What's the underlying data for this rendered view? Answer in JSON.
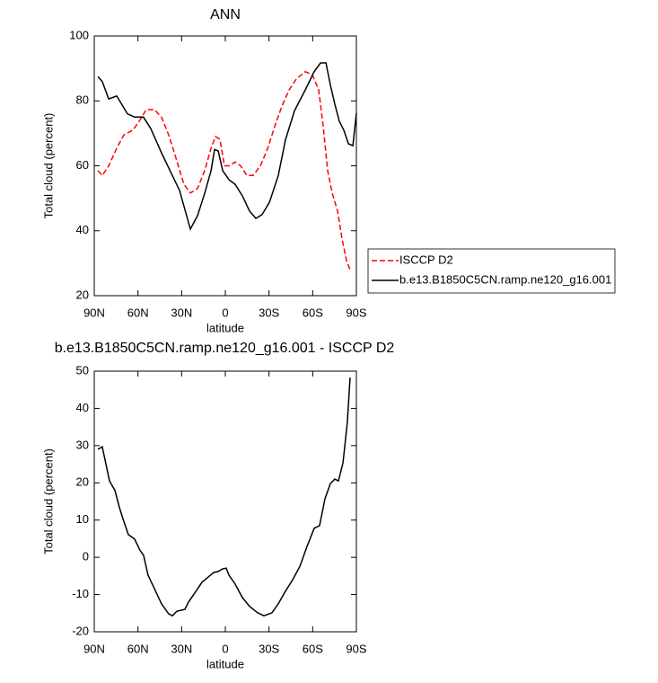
{
  "chart_data": [
    {
      "type": "line",
      "title": "ANN",
      "xlabel": "latitude",
      "ylabel": "Total cloud (percent)",
      "xlim": [
        90,
        -90
      ],
      "xticks": [
        {
          "value": 90,
          "label": "90N"
        },
        {
          "value": 60,
          "label": "60N"
        },
        {
          "value": 30,
          "label": "30N"
        },
        0,
        {
          "value": -30,
          "label": "30S"
        },
        {
          "value": -60,
          "label": "60S"
        },
        {
          "value": -90,
          "label": "90S"
        }
      ],
      "ylim": [
        20,
        100
      ],
      "yticks": [
        20,
        40,
        60,
        80,
        100
      ],
      "legend": "right",
      "series": [
        {
          "name": "ISCCP D2",
          "color": "#ff0000",
          "line_style": "dashed",
          "x": [
            87.5,
            84.5,
            80.1,
            74.6,
            69.7,
            63.5,
            59.2,
            54.3,
            48.7,
            43.8,
            38.9,
            34.0,
            28.4,
            24.0,
            19.1,
            14.2,
            9.8,
            6.8,
            3.7,
            0.6,
            -3.1,
            -6.8,
            -10.5,
            -14.8,
            -19.1,
            -24.1,
            -29.1,
            -34.0,
            -38.9,
            -43.8,
            -48.7,
            -54.9,
            -59.8,
            -64.1,
            -67.2,
            -70.3,
            -73.4,
            -77.1,
            -80.1,
            -83.2,
            -85.7
          ],
          "values": [
            58.5,
            57,
            60,
            65.4,
            69.5,
            71,
            73.7,
            77.3,
            77.3,
            75,
            69.5,
            62.6,
            54.3,
            51.6,
            53,
            58.5,
            65.4,
            69,
            68.2,
            60,
            60,
            61.2,
            60,
            57,
            57,
            60,
            65.4,
            72.3,
            78.4,
            83.4,
            86.7,
            89,
            88,
            83.4,
            72.3,
            58.5,
            51.6,
            46,
            37.7,
            30.8,
            28
          ]
        },
        {
          "name": "b.e13.B1850C5CN.ramp.ne120_g16.001",
          "color": "#000000",
          "line_style": "solid",
          "x": [
            87.5,
            84.5,
            80.1,
            74.6,
            67.2,
            62.3,
            56.2,
            51.2,
            43.8,
            36.4,
            31.5,
            24.0,
            19.1,
            14.2,
            9.8,
            7.4,
            4.9,
            1.8,
            -2.5,
            -6.8,
            -11.8,
            -16.7,
            -21.0,
            -25.3,
            -30.3,
            -36.4,
            -41.3,
            -47.5,
            -54.9,
            -61.0,
            -65.4,
            -69.1,
            -72.2,
            -75.2,
            -78.3,
            -81.4,
            -84.5,
            -87.6,
            -90
          ],
          "values": [
            87.5,
            86,
            80.6,
            81.5,
            76,
            75,
            75,
            71.5,
            64,
            57,
            52.5,
            40.5,
            44.6,
            51.5,
            58.5,
            65,
            64.6,
            58.5,
            55.7,
            54.3,
            50.7,
            46,
            43.8,
            45,
            48.8,
            57,
            68,
            77,
            83.4,
            89,
            91.7,
            91.7,
            84.8,
            79,
            73.7,
            71,
            66.8,
            66.2,
            76.2
          ]
        }
      ]
    },
    {
      "type": "line",
      "title": "b.e13.B1850C5CN.ramp.ne120_g16.001 - ISCCP D2",
      "xlabel": "latitude",
      "ylabel": "Total cloud (percent)",
      "xlim": [
        90,
        -90
      ],
      "xticks": [
        {
          "value": 90,
          "label": "90N"
        },
        {
          "value": 60,
          "label": "60N"
        },
        {
          "value": 30,
          "label": "30N"
        },
        0,
        {
          "value": -30,
          "label": "30S"
        },
        {
          "value": -60,
          "label": "60S"
        },
        {
          "value": -90,
          "label": "90S"
        }
      ],
      "ylim": [
        -20,
        50
      ],
      "yticks": [
        -20,
        -10,
        0,
        10,
        20,
        30,
        40,
        50
      ],
      "series": [
        {
          "color": "#000000",
          "line_style": "solid",
          "x": [
            87.5,
            84.5,
            79.5,
            75.8,
            72.7,
            69.7,
            66.6,
            62.3,
            58.6,
            56.1,
            53.1,
            48.7,
            43.8,
            38.9,
            36.4,
            33.3,
            27.8,
            25.3,
            21.0,
            16.0,
            11.7,
            8.0,
            4.9,
            1.8,
            -0.6,
            -2.5,
            -6.8,
            -11.7,
            -16.7,
            -22.2,
            -26.5,
            -32.0,
            -36.4,
            -41.3,
            -46.3,
            -51.2,
            -56.1,
            -61.0,
            -64.7,
            -68.4,
            -72.1,
            -75.2,
            -77.7,
            -80.8,
            -83.8,
            -85.7
          ],
          "values": [
            29,
            29.7,
            20.5,
            18,
            13.3,
            9.7,
            6.1,
            4.9,
            1.9,
            0.5,
            -4.8,
            -8.4,
            -12.5,
            -15.2,
            -15.7,
            -14.5,
            -14,
            -12,
            -9.6,
            -6.7,
            -5.3,
            -4.1,
            -3.8,
            -3.1,
            -2.9,
            -4.8,
            -7.2,
            -10.8,
            -13.2,
            -14.9,
            -15.7,
            -14.9,
            -12.5,
            -9.1,
            -6,
            -2.4,
            2.9,
            7.8,
            8.5,
            15.7,
            19.8,
            21,
            20.5,
            25.4,
            36.2,
            48.3
          ]
        }
      ]
    }
  ]
}
